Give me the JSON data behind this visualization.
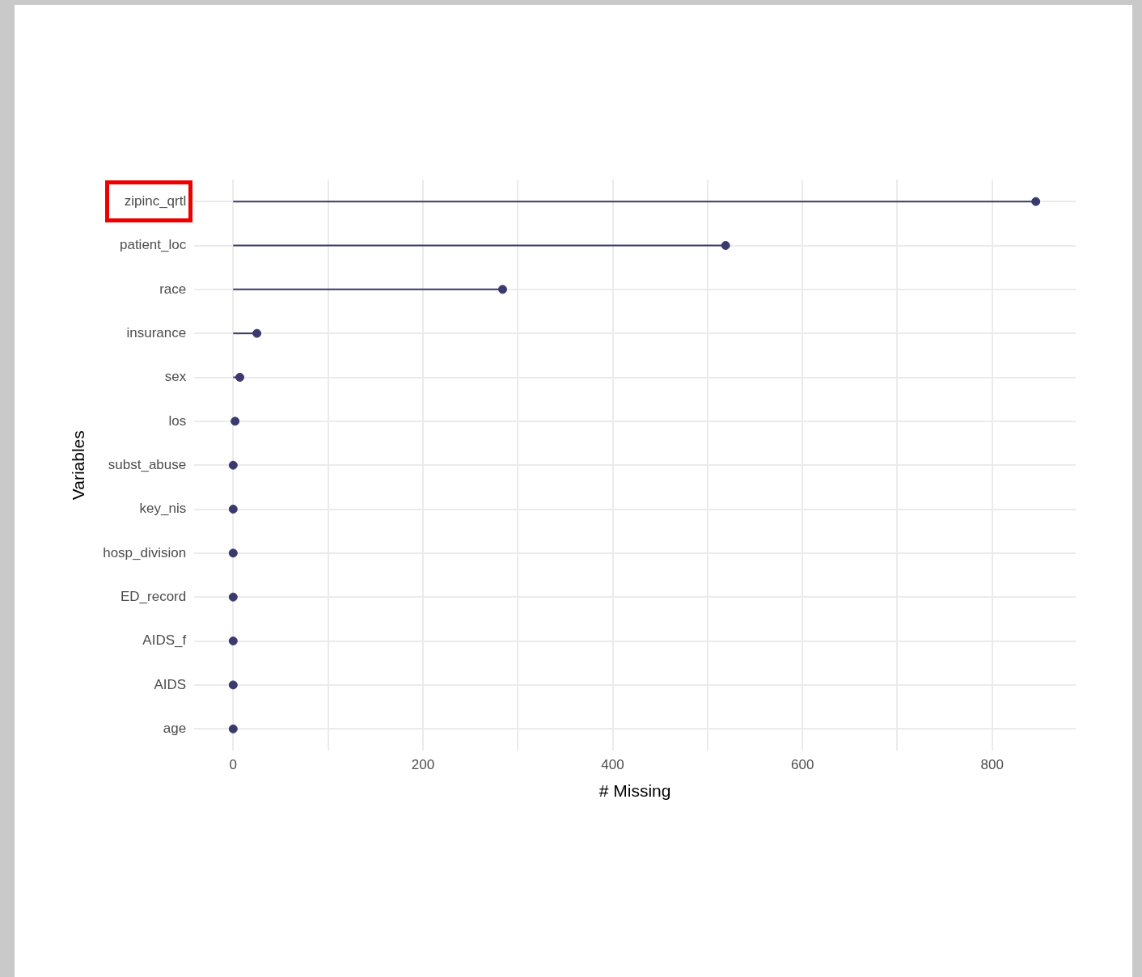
{
  "chart_data": {
    "type": "lollipop",
    "orientation": "horizontal",
    "xlabel": "# Missing",
    "ylabel": "Variables",
    "categories": [
      "zipinc_qrtl",
      "patient_loc",
      "race",
      "insurance",
      "sex",
      "los",
      "subst_abuse",
      "key_nis",
      "hosp_division",
      "ED_record",
      "AIDS_f",
      "AIDS",
      "age"
    ],
    "values": [
      846,
      519,
      284,
      25,
      7,
      2,
      0,
      0,
      0,
      0,
      0,
      0,
      0
    ],
    "color": "#3b3a6e",
    "marker": "circle",
    "grid": true,
    "legend": false,
    "xlim": [
      -41,
      888
    ],
    "xticks": [
      0,
      {
        "value": 100,
        "label": null
      },
      200,
      {
        "value": 300,
        "label": null
      },
      400,
      {
        "value": 500,
        "label": null
      },
      600,
      {
        "value": 700,
        "label": null
      },
      800
    ]
  }
}
